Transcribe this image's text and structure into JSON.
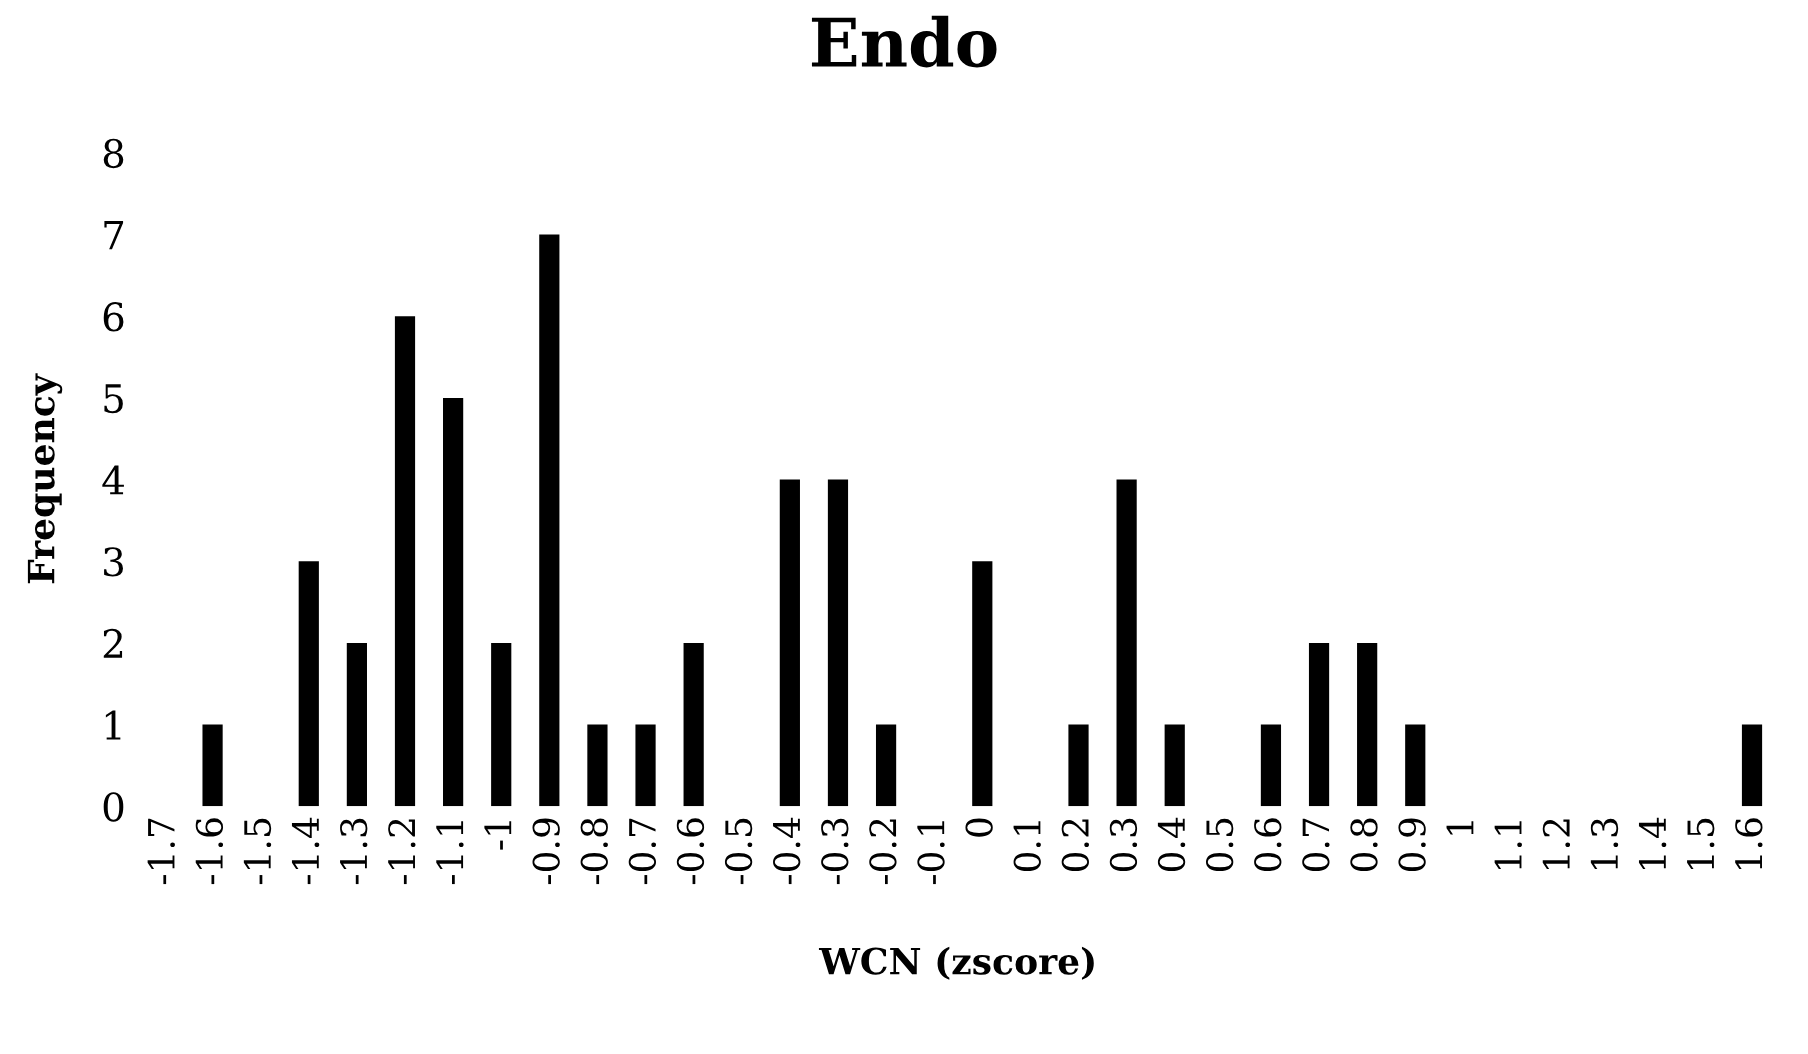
{
  "chart_data": {
    "type": "bar",
    "title": "Endo",
    "xlabel": "WCN (zscore)",
    "ylabel": "Frequency",
    "categories": [
      "-1.7",
      "-1.6",
      "-1.5",
      "-1.4",
      "-1.3",
      "-1.2",
      "-1.1",
      "-1",
      "-0.9",
      "-0.8",
      "-0.7",
      "-0.6",
      "-0.5",
      "-0.4",
      "-0.3",
      "-0.2",
      "-0.1",
      "0",
      "0.1",
      "0.2",
      "0.3",
      "0.4",
      "0.5",
      "0.6",
      "0.7",
      "0.8",
      "0.9",
      "1",
      "1.1",
      "1.2",
      "1.3",
      "1.4",
      "1.5",
      "1.6"
    ],
    "values": [
      0,
      1,
      0,
      3,
      2,
      6,
      5,
      2,
      7,
      1,
      1,
      2,
      0,
      4,
      4,
      1,
      0,
      3,
      0,
      1,
      4,
      1,
      0,
      1,
      2,
      2,
      1,
      0,
      0,
      0,
      0,
      0,
      0,
      1
    ],
    "color": "#000000",
    "ylim": [
      0,
      8
    ],
    "yticks": [
      0,
      1,
      2,
      3,
      4,
      5,
      6,
      7,
      8
    ],
    "grid": false,
    "legend": false
  }
}
